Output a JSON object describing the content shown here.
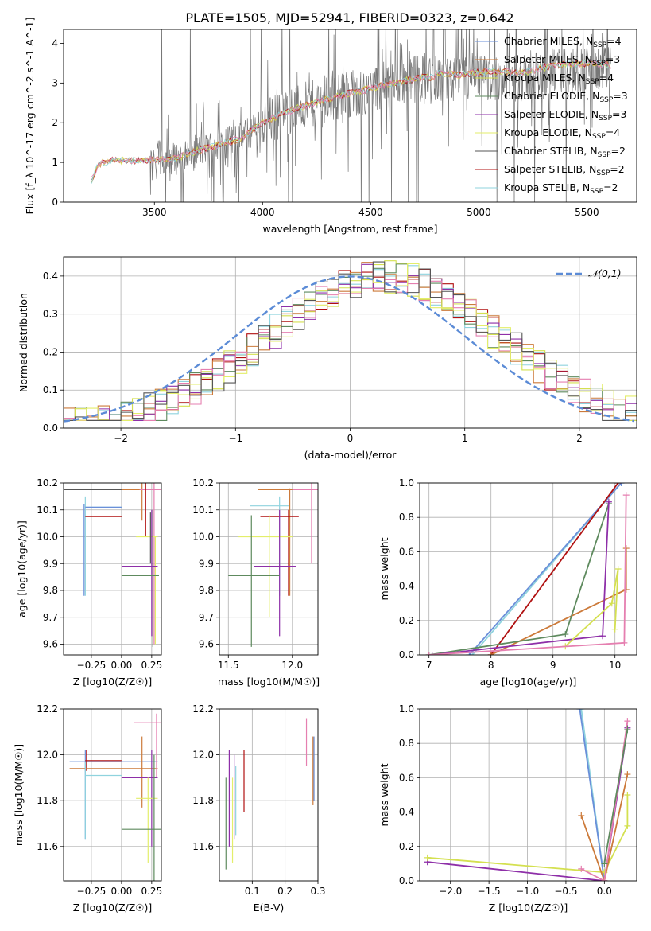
{
  "figure_title": "PLATE=1505, MJD=52941, FIBERID=0323, z=0.642",
  "colors": {
    "Chabrier MILES": "#6a8fd9",
    "Salpeter MILES": "#cc7a3a",
    "Kroupa MILES": "#d4e050",
    "Chabrier ELODIE": "#5e8a5e",
    "Salpeter ELODIE": "#8e2fa8",
    "Kroupa ELODIE": "#e3ee6a",
    "Chabrier STELIB": "#555555",
    "Salpeter STELIB": "#b01010",
    "Kroupa STELIB": "#8fd3de",
    "pink": "#e57fb0",
    "gaussian": "#5b8bd6"
  },
  "chart_data": [
    {
      "id": "spectrum",
      "type": "line",
      "title": "PLATE=1505, MJD=52941, FIBERID=0323, z=0.642",
      "xlabel": "wavelength [Angstrom, rest frame]",
      "ylabel": "Flux [f_λ 10^-17 erg cm^-2 s^-1 A^-1]",
      "xlim": [
        3080,
        5730
      ],
      "ylim": [
        0,
        4.35
      ],
      "xticks": [
        3500,
        4000,
        4500,
        5000,
        5500
      ],
      "yticks": [
        0,
        1,
        2,
        3,
        4
      ],
      "grid": false,
      "legend_position": "top-right",
      "legend": [
        "Chabrier MILES, N_SSP=4",
        "Salpeter MILES, N_SSP=3",
        "Kroupa MILES, N_SSP=4",
        "Chabrier ELODIE, N_SSP=3",
        "Salpeter ELODIE, N_SSP=3",
        "Kroupa ELODIE, N_SSP=4",
        "Chabrier STELIB, N_SSP=2",
        "Salpeter STELIB, N_SSP=2",
        "Kroupa STELIB, N_SSP=2"
      ],
      "data_range_x": [
        3210,
        5610
      ],
      "continuum": [
        [
          3210,
          0.55
        ],
        [
          3240,
          0.95
        ],
        [
          3300,
          1.05
        ],
        [
          3450,
          1.05
        ],
        [
          3600,
          1.1
        ],
        [
          3700,
          1.3
        ],
        [
          3800,
          1.45
        ],
        [
          3900,
          1.6
        ],
        [
          4000,
          2.0
        ],
        [
          4150,
          2.35
        ],
        [
          4300,
          2.6
        ],
        [
          4450,
          2.8
        ],
        [
          4600,
          3.0
        ],
        [
          4750,
          3.15
        ],
        [
          4900,
          3.05
        ],
        [
          5050,
          3.15
        ],
        [
          5200,
          3.1
        ],
        [
          5350,
          3.3
        ],
        [
          5500,
          3.35
        ],
        [
          5610,
          3.3
        ]
      ]
    },
    {
      "id": "residual_hist",
      "type": "line",
      "xlabel": "(data-model)/error",
      "ylabel": "Normed distribution",
      "xlim": [
        -2.5,
        2.5
      ],
      "ylim": [
        0,
        0.45
      ],
      "xticks": [
        -2,
        -1,
        0,
        1,
        2
      ],
      "yticks": [
        0.0,
        0.1,
        0.2,
        0.3,
        0.4
      ],
      "grid": true,
      "legend_position": "top-right",
      "legend": [
        "𝒩(0,1)"
      ],
      "bin_width": 0.1,
      "bin_start": -2.5
    },
    {
      "id": "age_vs_Z",
      "type": "scatter",
      "xlabel": "Z [log10(Z/Z☉)]",
      "ylabel": "age [log10(age/yr)]",
      "xlim": [
        -0.48,
        0.33
      ],
      "ylim": [
        9.56,
        10.2
      ],
      "xticks": [
        -0.25,
        0.0,
        0.25
      ],
      "xtick_labels": [
        "−0.25",
        "0.00",
        "0.25"
      ],
      "yticks": [
        9.6,
        9.7,
        9.8,
        9.9,
        10.0,
        10.1,
        10.2
      ],
      "grid": true
    },
    {
      "id": "age_vs_mass",
      "type": "scatter",
      "xlabel": "mass [log10(M/M☉)]",
      "ylabel": "",
      "xlim": [
        11.43,
        12.2
      ],
      "ylim": [
        9.56,
        10.2
      ],
      "xticks": [
        11.5,
        12.0
      ],
      "xtick_labels": [
        "11.5",
        "12.0"
      ],
      "yticks": [
        9.6,
        9.7,
        9.8,
        9.9,
        10.0,
        10.1,
        10.2
      ],
      "grid": true
    },
    {
      "id": "weight_vs_age",
      "type": "line",
      "xlabel": "age [log10(age/yr)]",
      "ylabel": "mass weight",
      "xlim": [
        6.85,
        10.35
      ],
      "ylim": [
        0,
        1.0
      ],
      "xticks": [
        7,
        8,
        9,
        10
      ],
      "yticks": [
        0.0,
        0.2,
        0.4,
        0.6,
        0.8,
        1.0
      ],
      "grid": true,
      "series": [
        {
          "color": "#8fd3de",
          "points": [
            [
              7.7,
              0.0
            ],
            [
              10.1,
              1.0
            ]
          ]
        },
        {
          "color": "#6a8fd9",
          "points": [
            [
              7.65,
              0.0
            ],
            [
              10.1,
              1.0
            ]
          ]
        },
        {
          "color": "#b01010",
          "points": [
            [
              8.0,
              0.0
            ],
            [
              10.05,
              1.0
            ]
          ]
        },
        {
          "color": "#cc7a3a",
          "points": [
            [
              8.0,
              0.0
            ],
            [
              10.18,
              0.38
            ],
            [
              10.18,
              0.62
            ]
          ]
        },
        {
          "color": "#5e8a5e",
          "points": [
            [
              7.0,
              0.0
            ],
            [
              9.2,
              0.12
            ],
            [
              9.9,
              0.88
            ]
          ]
        },
        {
          "color": "#8e2fa8",
          "points": [
            [
              7.05,
              0.0
            ],
            [
              9.8,
              0.11
            ],
            [
              9.9,
              0.89
            ]
          ]
        },
        {
          "color": "#d4e050",
          "points": [
            [
              9.2,
              0.05
            ],
            [
              9.95,
              0.3
            ],
            [
              10.05,
              0.5
            ],
            [
              10.0,
              0.15
            ]
          ]
        },
        {
          "color": "#e57fb0",
          "points": [
            [
              7.0,
              0.0
            ],
            [
              10.15,
              0.07
            ],
            [
              10.18,
              0.93
            ]
          ]
        }
      ]
    },
    {
      "id": "mass_vs_Z",
      "type": "scatter",
      "xlabel": "Z [log10(Z/Z☉)]",
      "ylabel": "mass [log10(M/M☉)]",
      "xlim": [
        -0.48,
        0.33
      ],
      "ylim": [
        11.45,
        12.2
      ],
      "xticks": [
        -0.25,
        0.0,
        0.25
      ],
      "xtick_labels": [
        "−0.25",
        "0.00",
        "0.25"
      ],
      "yticks": [
        11.6,
        11.8,
        12.0,
        12.2
      ],
      "grid": true
    },
    {
      "id": "mass_vs_EBV",
      "type": "scatter",
      "xlabel": "E(B-V)",
      "ylabel": "",
      "xlim": [
        0.0,
        0.3
      ],
      "ylim": [
        11.45,
        12.2
      ],
      "xticks": [
        0.1,
        0.2,
        0.3
      ],
      "xtick_labels": [
        "0.1",
        "0.2",
        "0.3"
      ],
      "yticks": [
        11.6,
        11.8,
        12.0,
        12.2
      ],
      "grid": true
    },
    {
      "id": "weight_vs_Z",
      "type": "line",
      "xlabel": "Z [log10(Z/Z☉)]",
      "ylabel": "mass weight",
      "xlim": [
        -2.4,
        0.42
      ],
      "ylim": [
        0,
        1.0
      ],
      "xticks": [
        -2.0,
        -1.5,
        -1.0,
        -0.5,
        0.0
      ],
      "xtick_labels": [
        "−2.0",
        "−1.5",
        "−1.0",
        "−0.5",
        "0.0"
      ],
      "yticks": [
        0.0,
        0.2,
        0.4,
        0.6,
        0.8,
        1.0
      ],
      "grid": true,
      "series": [
        {
          "color": "#8fd3de",
          "points": [
            [
              -0.3,
              1.0
            ],
            [
              0.0,
              0.0
            ]
          ]
        },
        {
          "color": "#6a8fd9",
          "points": [
            [
              -0.32,
              1.0
            ],
            [
              0.0,
              0.0
            ]
          ]
        },
        {
          "color": "#8e2fa8",
          "points": [
            [
              -2.3,
              0.11
            ],
            [
              0.0,
              0.0
            ],
            [
              0.3,
              0.89
            ]
          ]
        },
        {
          "color": "#d4e050",
          "points": [
            [
              -2.3,
              0.135
            ],
            [
              0.0,
              0.05
            ],
            [
              0.3,
              0.32
            ],
            [
              0.3,
              0.5
            ]
          ]
        },
        {
          "color": "#cc7a3a",
          "points": [
            [
              -0.3,
              0.38
            ],
            [
              0.0,
              0.0
            ],
            [
              0.3,
              0.62
            ]
          ]
        },
        {
          "color": "#e57fb0",
          "points": [
            [
              -0.3,
              0.07
            ],
            [
              0.0,
              0.0
            ],
            [
              0.3,
              0.93
            ]
          ]
        },
        {
          "color": "#5e8a5e",
          "points": [
            [
              0.0,
              0.1
            ],
            [
              0.3,
              0.88
            ]
          ]
        }
      ]
    }
  ]
}
